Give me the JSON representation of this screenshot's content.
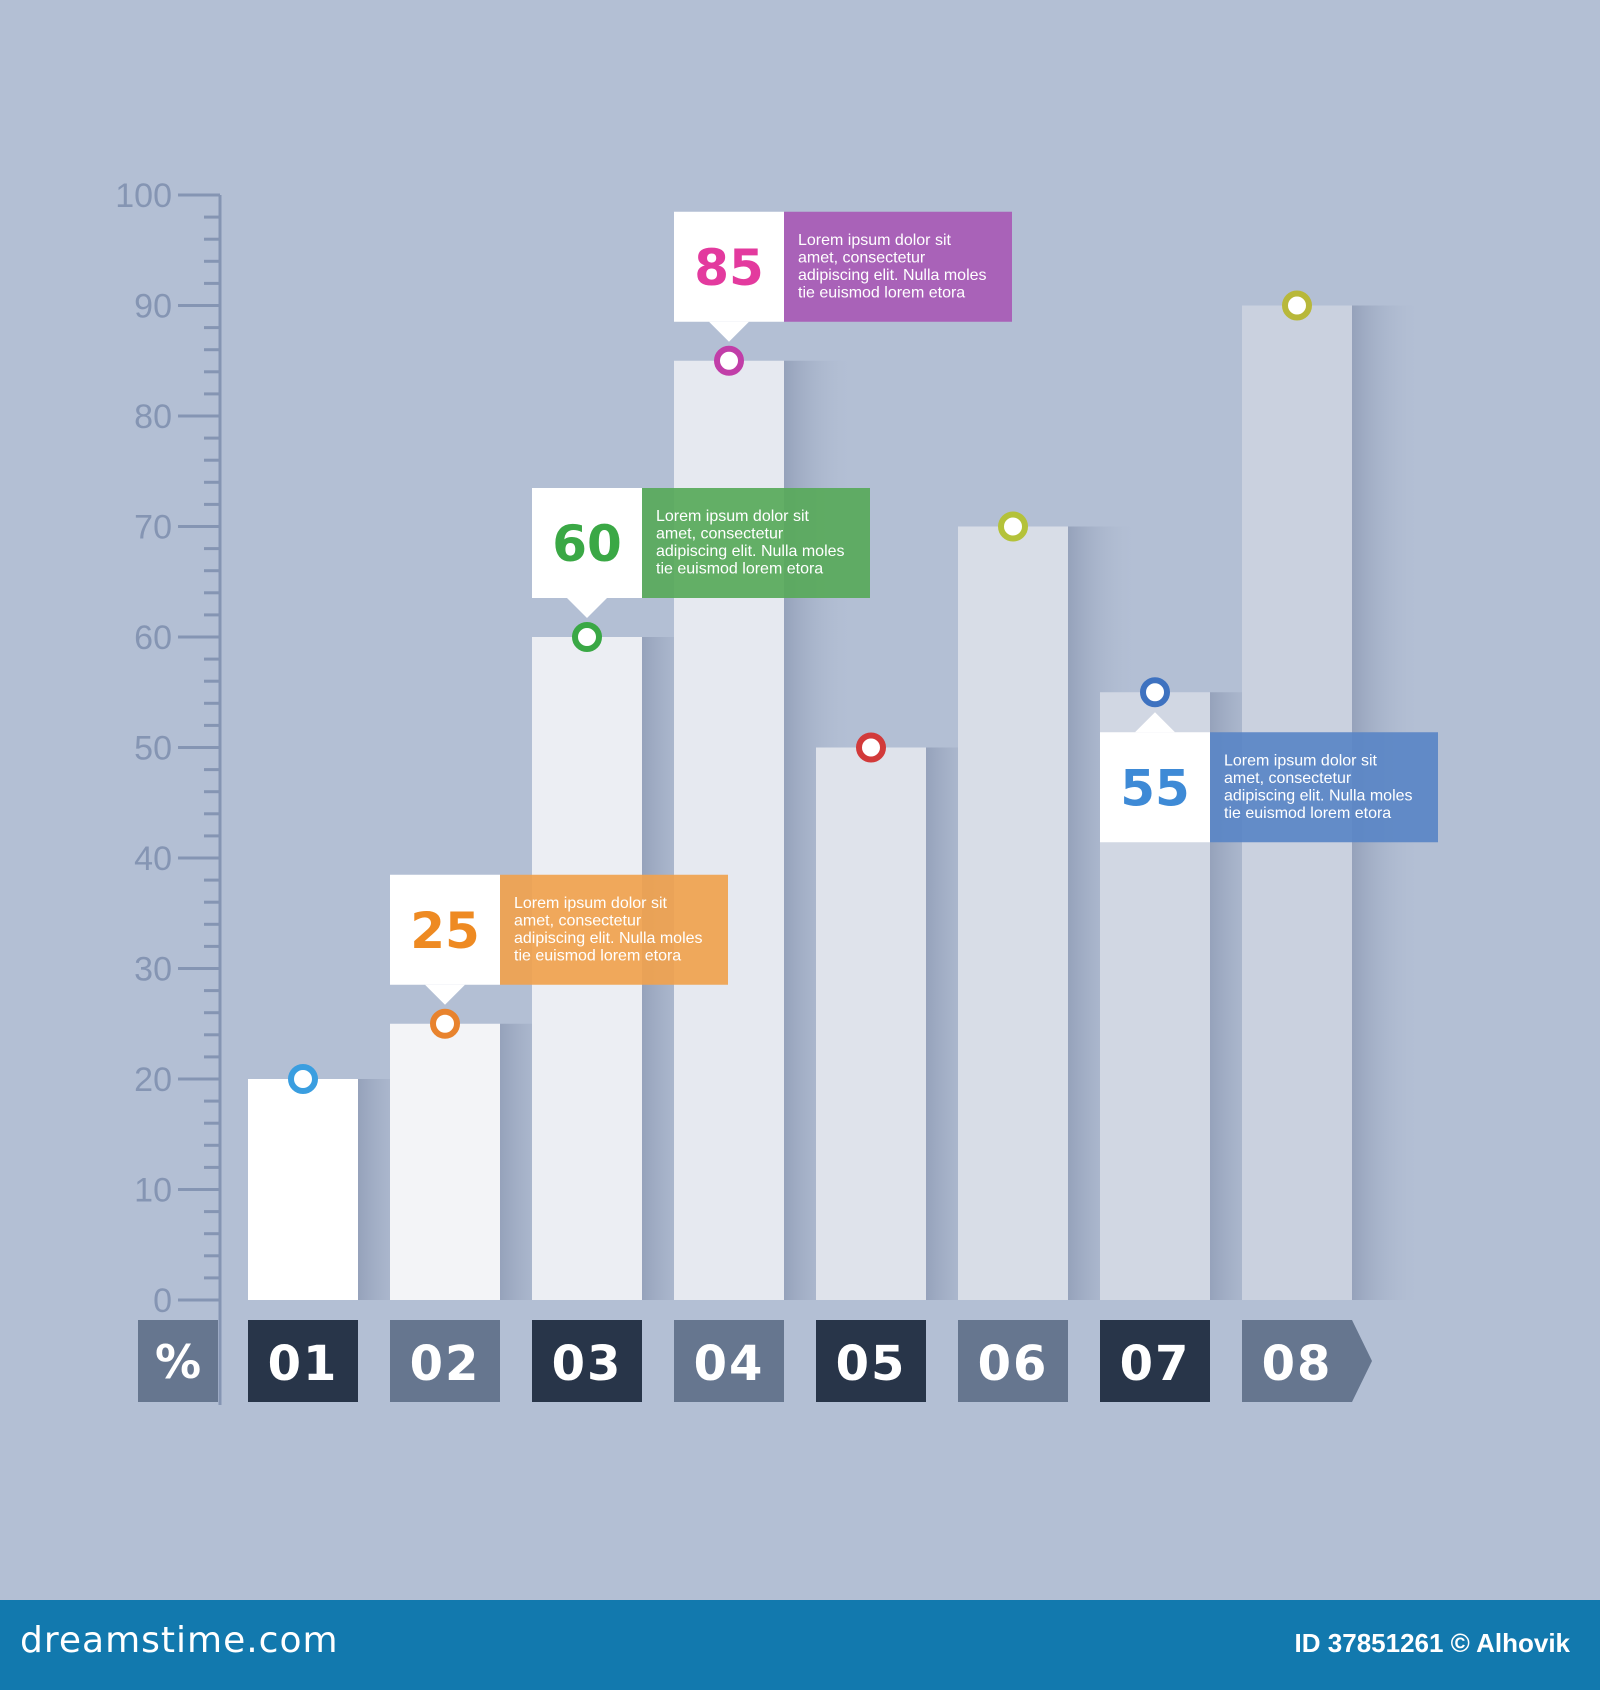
{
  "chart_data": {
    "type": "bar",
    "categories": [
      "01",
      "02",
      "03",
      "04",
      "05",
      "06",
      "07",
      "08"
    ],
    "values": [
      20,
      25,
      60,
      85,
      50,
      70,
      55,
      90
    ],
    "ylim": [
      0,
      100
    ],
    "yticks": [
      "0",
      "10",
      "20",
      "30",
      "40",
      "50",
      "60",
      "70",
      "80",
      "90",
      "100"
    ],
    "unit_label": "%",
    "marker_colors": [
      "#3a9ee0",
      "#e8832e",
      "#3aa845",
      "#c13ea8",
      "#d23a3a",
      "#b4c23a",
      "#3e72c0",
      "#b8b83a"
    ],
    "annotations": [
      {
        "category": "02",
        "label": "25",
        "color": "#f0a24e",
        "number_color": "#ee8a22",
        "text": [
          "Lorem ipsum dolor sit",
          "amet, consectetur",
          "adipiscing elit. Nulla moles",
          "tie euismod lorem etora"
        ]
      },
      {
        "category": "03",
        "label": "60",
        "color": "#58a95a",
        "number_color": "#3aa845",
        "text": [
          "Lorem ipsum dolor sit",
          "amet, consectetur",
          "adipiscing elit. Nulla moles",
          "tie euismod lorem etora"
        ]
      },
      {
        "category": "04",
        "label": "85",
        "color": "#a85ab5",
        "number_color": "#e33a9e",
        "text": [
          "Lorem ipsum dolor sit",
          "amet, consectetur",
          "adipiscing elit. Nulla moles",
          "tie euismod lorem etora"
        ]
      },
      {
        "category": "07",
        "label": "55",
        "color": "#5a86c6",
        "number_color": "#3e8ad6",
        "text": [
          "Lorem ipsum dolor sit",
          "amet, consectetur",
          "adipiscing elit. Nulla moles",
          "tie euismod lorem etora"
        ]
      }
    ],
    "grid": false,
    "legend": "none"
  },
  "footer": {
    "site": "dreamstime.com",
    "credit": "ID 37851261 © Alhovik"
  },
  "colors": {
    "background": "#b3bfd4",
    "axis": "#8595b3",
    "label_dark": "#283549",
    "label_mid": "#66768f",
    "footer": "#1279ae"
  }
}
